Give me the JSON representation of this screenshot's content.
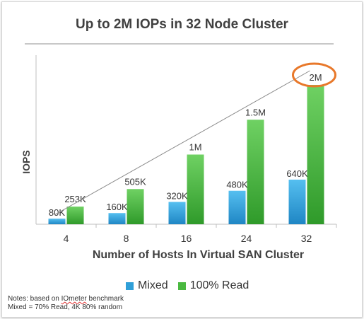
{
  "chart_data": {
    "type": "bar",
    "title": "Up to 2M IOPs in 32 Node Cluster",
    "xlabel": "Number of Hosts In Virtual SAN Cluster",
    "ylabel": "IOPS",
    "categories": [
      "4",
      "8",
      "16",
      "24",
      "32"
    ],
    "series": [
      {
        "name": "Mixed",
        "color": "#2f9fd8",
        "values": [
          80000,
          160000,
          320000,
          480000,
          640000
        ],
        "labels": [
          "80K",
          "160K",
          "320K",
          "480K",
          "640K"
        ]
      },
      {
        "name": "100% Read",
        "color": "#4ab940",
        "values": [
          253000,
          505000,
          1000000,
          1500000,
          2000000
        ],
        "labels": [
          "253K",
          "505K",
          "1M",
          "1.5M",
          "2M"
        ]
      }
    ],
    "ylim": [
      0,
      2000000
    ],
    "grid": false,
    "legend": "bottom",
    "trendline": true,
    "highlight": "2M"
  },
  "notes": {
    "line1_prefix": "Notes: based on ",
    "line1_word": "IOmeter",
    "line1_suffix": " benchmark",
    "line2": "Mixed = 70% Read, 4K 80% random"
  }
}
